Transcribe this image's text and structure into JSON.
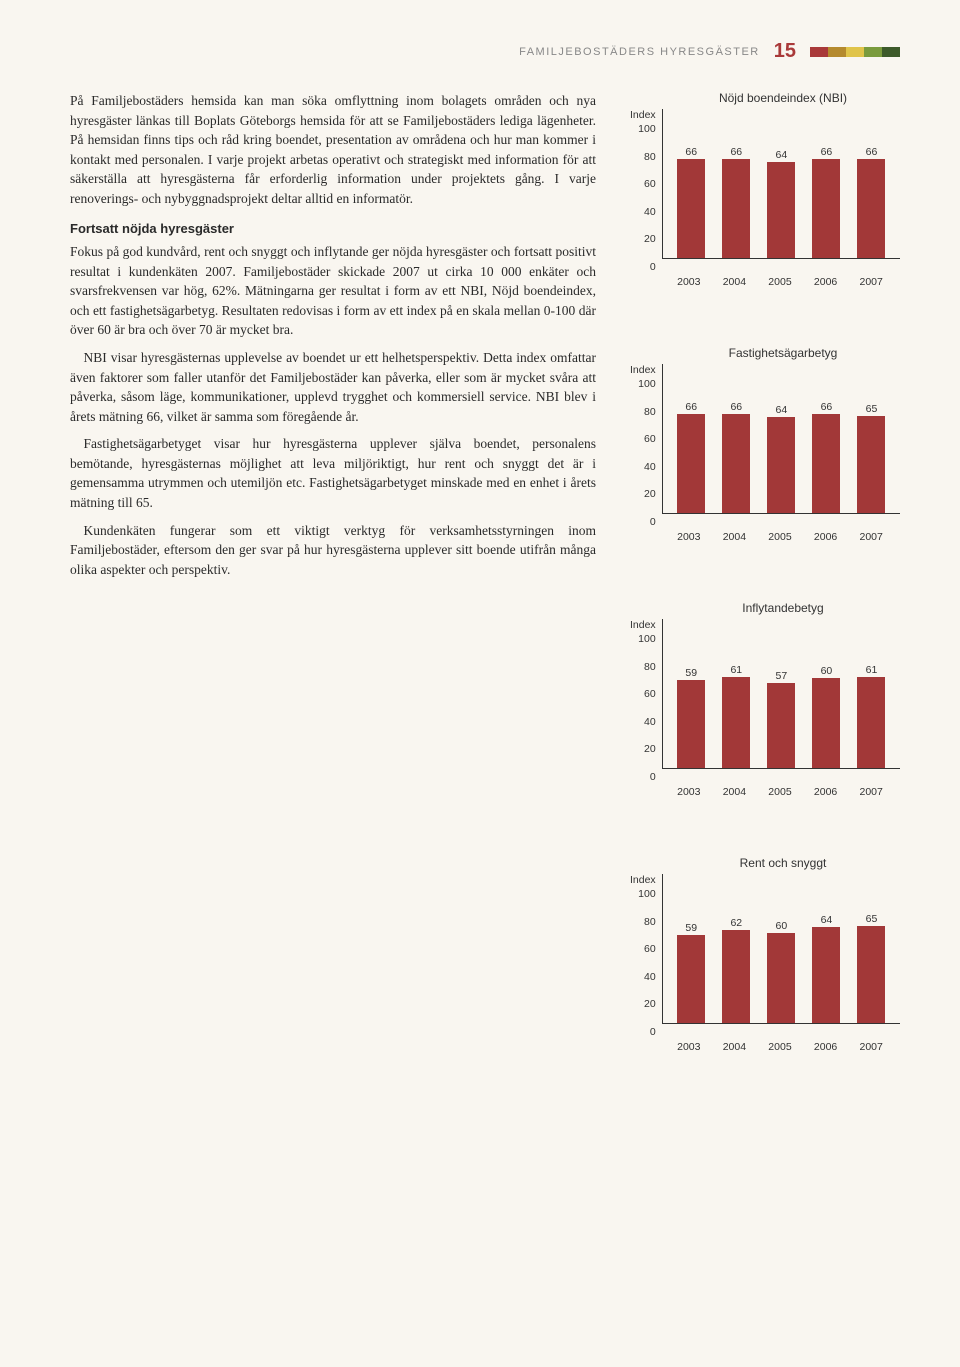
{
  "header": {
    "title": "FAMILJEBOSTÄDERS HYRESGÄSTER",
    "page": "15",
    "swatches": [
      "#a93939",
      "#b58a2e",
      "#e0c44a",
      "#7a9b3d",
      "#3d5a2a"
    ]
  },
  "text": {
    "p1": "På Familjebostäders hemsida kan man söka omflyttning inom bolagets områden och nya hyresgäster länkas till Boplats Göteborgs hemsida för att se Familjebostäders lediga lägenheter. På hemsidan finns tips och råd kring boendet, presentation av områdena och hur man kommer i kontakt med personalen. I varje projekt arbetas operativt och strategiskt med information för att säkerställa att hyresgästerna får erforderlig information under projektets gång. I varje renoverings- och nybyggnadsprojekt deltar alltid en informatör.",
    "subhead": "Fortsatt nöjda hyresgäster",
    "p2": "Fokus på god kundvård, rent och snyggt och inflytande ger nöjda hyresgäster och fortsatt positivt resultat i kundenkäten 2007. Familjebostäder skickade 2007 ut cirka 10 000 enkäter och svarsfrekvensen var hög, 62%. Mätningarna ger resultat i form av ett NBI, Nöjd boendeindex, och ett fastighetsägarbetyg. Resultaten redovisas i form av ett index på en skala mellan 0-100 där över 60 är bra och över 70 är mycket bra.",
    "p3": "NBI visar hyresgästernas upplevelse av boendet ur ett helhetsperspektiv. Detta index omfattar även faktorer som faller utanför det Familjebostäder kan påverka, eller som är mycket svåra att påverka, såsom läge, kommunikationer, upplevd trygghet och kommersiell service. NBI blev i årets mätning 66, vilket är samma som föregående år.",
    "p4": "Fastighetsägarbetyget visar hur hyresgästerna upplever själva boendet, personalens bemötande, hyresgästernas möjlighet att leva miljöriktigt, hur rent och snyggt det är i gemensamma utrymmen och utemiljön etc. Fastighetsägarbetyget minskade med en enhet i årets mätning till 65.",
    "p5": "Kundenkäten fungerar som ett viktigt verktyg för verksamhetsstyrningen inom Familjebostäder, eftersom den ger svar på hur hyresgästerna upplever sitt boende utifrån många olika aspekter och perspektiv."
  },
  "charts": {
    "ylabel": "Index",
    "ymax": 100,
    "ytick_step": 20,
    "bar_color": "#a23838",
    "categories": [
      "2003",
      "2004",
      "2005",
      "2006",
      "2007"
    ],
    "list": [
      {
        "title": "Nöjd boendeindex (NBI)",
        "values": [
          66,
          66,
          64,
          66,
          66
        ]
      },
      {
        "title": "Fastighetsägarbetyg",
        "values": [
          66,
          66,
          64,
          66,
          65
        ]
      },
      {
        "title": "Inflytandebetyg",
        "values": [
          59,
          61,
          57,
          60,
          61
        ]
      },
      {
        "title": "Rent och snyggt",
        "values": [
          59,
          62,
          60,
          64,
          65
        ]
      }
    ]
  }
}
